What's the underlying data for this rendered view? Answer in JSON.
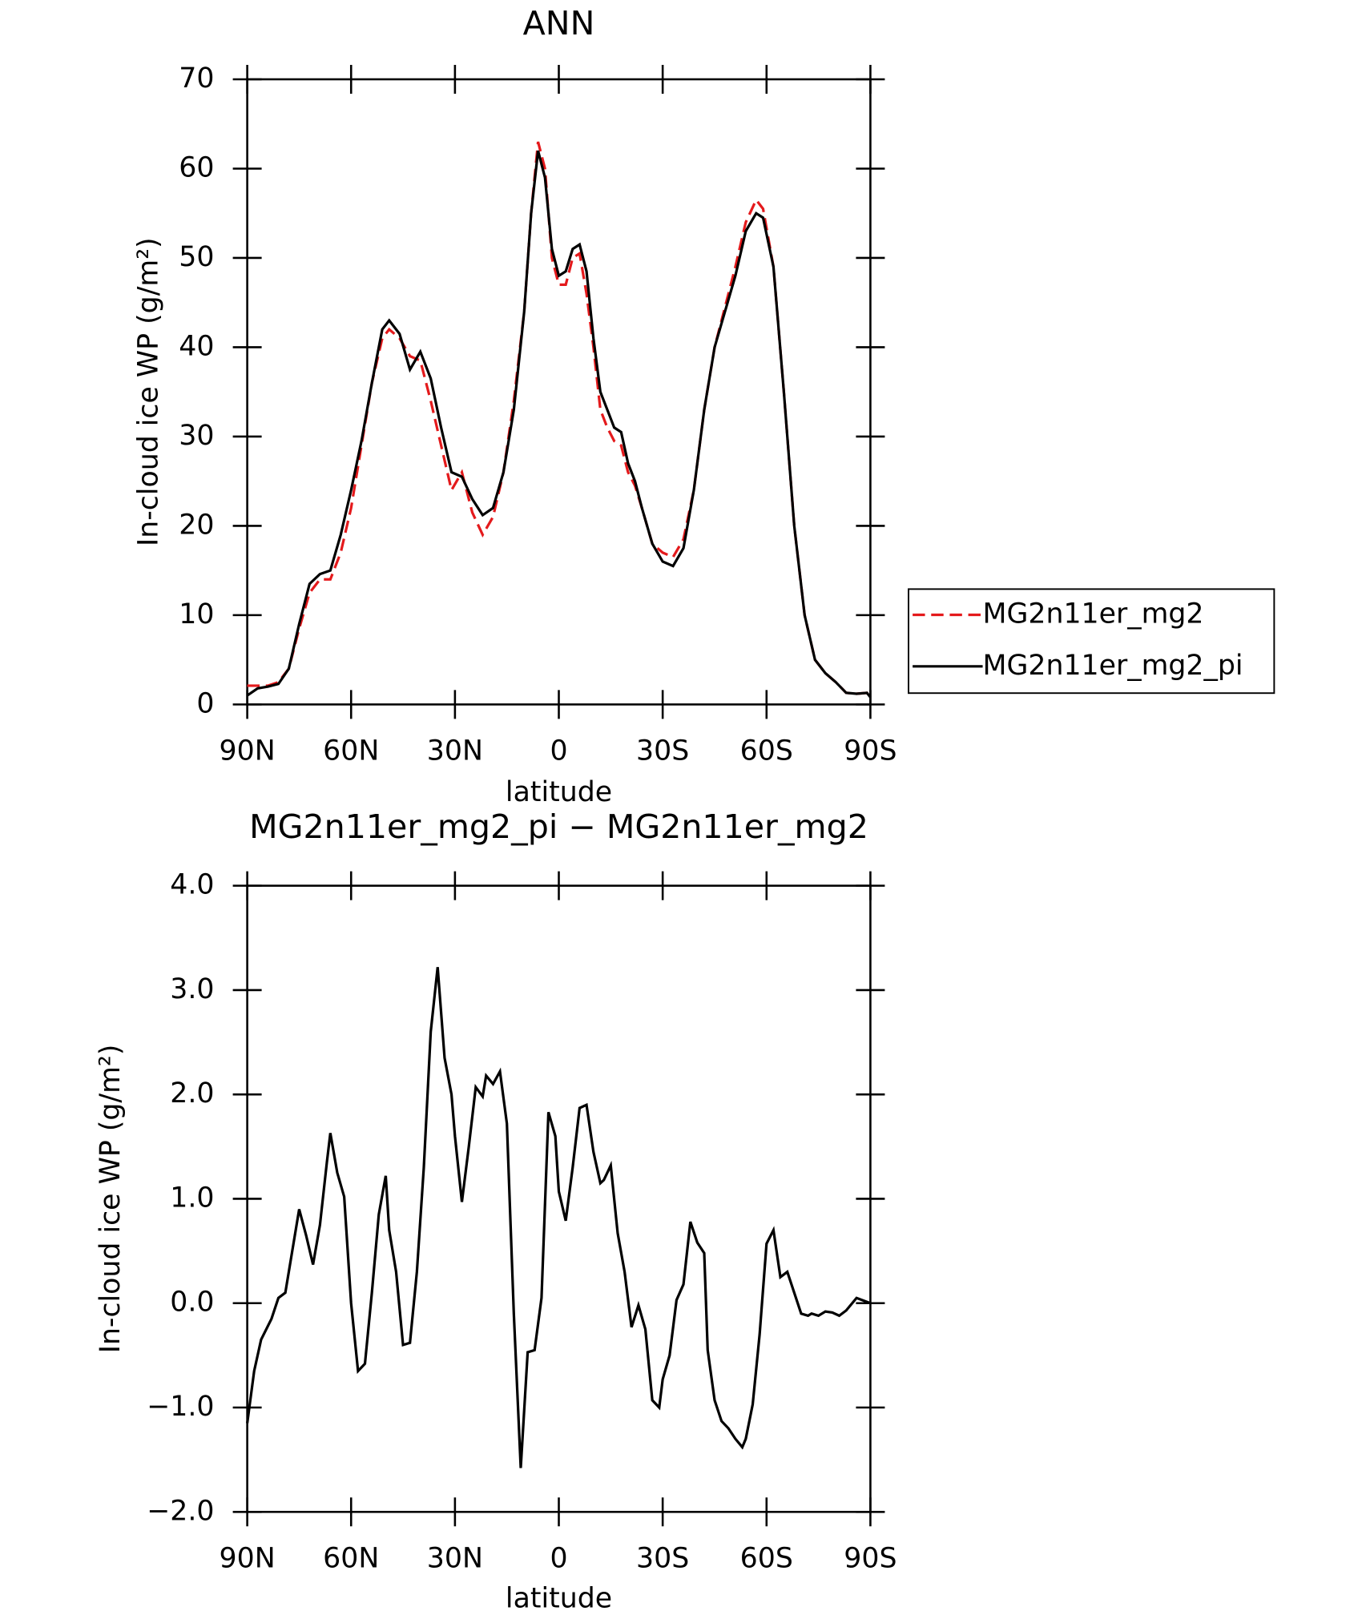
{
  "chart_data": [
    {
      "type": "line",
      "title": "ANN",
      "xlabel": "latitude",
      "ylabel": "In-cloud ice WP (g/m²)",
      "xlim": [
        90,
        -90
      ],
      "xticks": [
        {
          "value": 90,
          "label": "90N"
        },
        {
          "value": 60,
          "label": "60N"
        },
        {
          "value": 30,
          "label": "30N"
        },
        0,
        {
          "value": -30,
          "label": "30S"
        },
        {
          "value": -60,
          "label": "60S"
        },
        {
          "value": -90,
          "label": "90S"
        }
      ],
      "ylim": [
        0,
        70
      ],
      "yticks": [
        0,
        10,
        20,
        30,
        40,
        50,
        60,
        70
      ],
      "x": [
        90,
        87,
        84,
        81,
        78,
        75,
        72,
        69,
        66,
        63,
        60,
        57,
        54,
        51,
        49,
        46,
        43,
        40,
        37,
        34,
        31,
        28,
        25,
        22,
        19,
        16,
        13,
        10,
        8,
        6,
        4,
        2,
        0,
        -2,
        -4,
        -6,
        -8,
        -10,
        -12,
        -14,
        -16,
        -18,
        -20,
        -22,
        -24,
        -27,
        -30,
        -33,
        -36,
        -39,
        -42,
        -45,
        -48,
        -51,
        -54,
        -57,
        -59,
        -62,
        -65,
        -68,
        -71,
        -74,
        -77,
        -80,
        -83,
        -86,
        -89,
        -90
      ],
      "legend": "right",
      "series": [
        {
          "name": "MG2n11er_mg2",
          "color": "#e41a1c",
          "style": "dashed",
          "values": [
            2.1,
            2.1,
            2.1,
            2.5,
            4,
            8.5,
            12.5,
            14,
            14,
            17,
            22,
            29,
            36,
            41,
            42,
            41,
            39,
            38.5,
            34,
            29,
            24,
            26,
            21.5,
            19,
            21,
            26,
            34,
            44,
            55,
            63,
            60,
            50,
            47,
            47,
            50,
            50.5,
            46,
            40,
            33,
            31,
            29.5,
            29,
            26,
            24.5,
            22,
            18,
            17,
            16.5,
            18.5,
            24,
            33,
            40,
            44.5,
            49,
            54,
            56.5,
            55.5,
            49,
            35,
            20,
            10,
            5,
            3.5,
            2.5,
            1.3,
            1.2,
            1.3,
            0.8
          ]
        },
        {
          "name": "MG2n11er_mg2_pi",
          "color": "#000000",
          "style": "solid",
          "values": [
            1,
            1.8,
            2,
            2.3,
            4,
            9,
            13.5,
            14.6,
            15,
            19,
            24,
            29.5,
            36,
            42,
            43,
            41.5,
            37.5,
            39.5,
            36.5,
            31,
            26,
            25.5,
            23,
            21.2,
            22,
            26,
            33,
            44,
            55,
            62,
            59,
            51,
            48,
            48.5,
            51,
            51.5,
            48.5,
            41,
            35,
            33,
            31,
            30.5,
            27,
            25,
            22,
            18,
            16,
            15.5,
            17.5,
            24,
            33,
            40,
            44,
            48,
            53,
            55,
            54.5,
            49,
            35,
            20,
            10,
            5,
            3.5,
            2.5,
            1.3,
            1.2,
            1.3,
            0.8
          ]
        }
      ]
    },
    {
      "type": "line",
      "title": "MG2n11er_mg2_pi − MG2n11er_mg2",
      "xlabel": "latitude",
      "ylabel": "In-cloud ice WP (g/m²)",
      "xlim": [
        90,
        -90
      ],
      "xticks": [
        {
          "value": 90,
          "label": "90N"
        },
        {
          "value": 60,
          "label": "60N"
        },
        {
          "value": 30,
          "label": "30N"
        },
        0,
        {
          "value": -30,
          "label": "30S"
        },
        {
          "value": -60,
          "label": "60S"
        },
        {
          "value": -90,
          "label": "90S"
        }
      ],
      "ylim": [
        -2,
        4
      ],
      "yticks": [
        {
          "value": -2,
          "label": "−2.0"
        },
        {
          "value": -1,
          "label": "−1.0"
        },
        {
          "value": 0,
          "label": "0.0"
        },
        {
          "value": 1,
          "label": "1.0"
        },
        {
          "value": 2,
          "label": "2.0"
        },
        {
          "value": 3,
          "label": "3.0"
        },
        {
          "value": 4,
          "label": "4.0"
        }
      ],
      "x": [
        90,
        88,
        86,
        83,
        81,
        79,
        77,
        75,
        73,
        71,
        69,
        67,
        66,
        64,
        62,
        60,
        58,
        56,
        54,
        52,
        50,
        49,
        47,
        45,
        43,
        41,
        39,
        37,
        35,
        33,
        31,
        30,
        28,
        26,
        24,
        22,
        21,
        19,
        17,
        15,
        13,
        11,
        9,
        7,
        5,
        3,
        1,
        0,
        -2,
        -4,
        -6,
        -8,
        -10,
        -12,
        -13,
        -15,
        -17,
        -19,
        -21,
        -23,
        -25,
        -27,
        -29,
        -30,
        -32,
        -34,
        -36,
        -38,
        -40,
        -42,
        -43,
        -45,
        -47,
        -49,
        -51,
        -53,
        -54,
        -56,
        -58,
        -60,
        -62,
        -64,
        -66,
        -70,
        -72,
        -73,
        -75,
        -77,
        -79,
        -81,
        -83,
        -86,
        -90
      ],
      "series": [
        {
          "color": "#000000",
          "style": "solid",
          "values": [
            -1.15,
            -0.65,
            -0.35,
            -0.15,
            0.05,
            0.1,
            0.5,
            0.9,
            0.65,
            0.37,
            0.75,
            1.35,
            1.63,
            1.25,
            1.02,
            0,
            -0.65,
            -0.58,
            0.1,
            0.85,
            1.22,
            0.7,
            0.3,
            -0.4,
            -0.38,
            0.3,
            1.3,
            2.6,
            3.22,
            2.35,
            2,
            1.6,
            0.97,
            1.5,
            2.07,
            1.98,
            2.18,
            2.1,
            2.22,
            1.72,
            -0.1,
            -1.58,
            -0.47,
            -0.45,
            0.05,
            1.83,
            1.6,
            1.07,
            0.79,
            1.3,
            1.87,
            1.9,
            1.45,
            1.15,
            1.18,
            1.32,
            0.67,
            0.3,
            -0.23,
            -0.02,
            -0.25,
            -0.93,
            -1,
            -0.73,
            -0.5,
            0.03,
            0.18,
            0.78,
            0.58,
            0.48,
            -0.45,
            -0.93,
            -1.13,
            -1.2,
            -1.3,
            -1.38,
            -1.3,
            -0.97,
            -0.3,
            0.57,
            0.7,
            0.25,
            0.3,
            -0.1,
            -0.12,
            -0.1,
            -0.12,
            -0.08,
            -0.09,
            -0.12,
            -0.07,
            0.05,
            0
          ]
        }
      ]
    }
  ]
}
